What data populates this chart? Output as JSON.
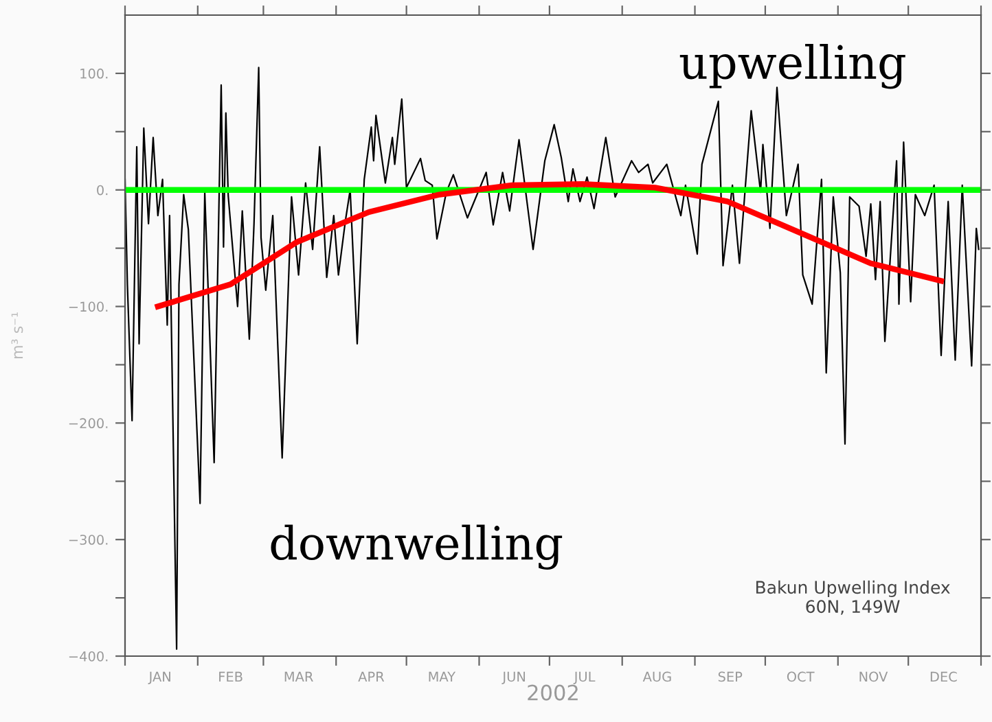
{
  "chart_data": {
    "type": "line",
    "xlabel": "2002",
    "ylabel": "m³ s⁻¹",
    "annotations": [
      "upwelling",
      "downwelling",
      "Bakun Upwelling Index\n60N, 149W"
    ],
    "series": [
      {
        "color": "#000000",
        "x": [
          "2002-01-01",
          "2002-01-02",
          "2002-01-04",
          "2002-01-06",
          "2002-01-07",
          "2002-01-09",
          "2002-01-11",
          "2002-01-13",
          "2002-01-15",
          "2002-01-17",
          "2002-01-19",
          "2002-01-20",
          "2002-01-23",
          "2002-01-24",
          "2002-01-26",
          "2002-01-28",
          "2002-02-02",
          "2002-02-04",
          "2002-02-08",
          "2002-02-11",
          "2002-02-12",
          "2002-02-13",
          "2002-02-14",
          "2002-02-18",
          "2002-02-20",
          "2002-02-23",
          "2002-02-25",
          "2002-02-27",
          "2002-02-28",
          "2002-03-02",
          "2002-03-05",
          "2002-03-09",
          "2002-03-13",
          "2002-03-16",
          "2002-03-19",
          "2002-03-22",
          "2002-03-25",
          "2002-03-28",
          "2002-03-31",
          "2002-04-02",
          "2002-04-05",
          "2002-04-07",
          "2002-04-10",
          "2002-04-13",
          "2002-04-16",
          "2002-04-17",
          "2002-04-18",
          "2002-04-22",
          "2002-04-25",
          "2002-04-26",
          "2002-04-29",
          "2002-05-01",
          "2002-05-07",
          "2002-05-09",
          "2002-05-12",
          "2002-05-14",
          "2002-05-18",
          "2002-05-21",
          "2002-05-27",
          "2002-06-04",
          "2002-06-07",
          "2002-06-11",
          "2002-06-14",
          "2002-06-18",
          "2002-06-24",
          "2002-06-29",
          "2002-07-03",
          "2002-07-06",
          "2002-07-09",
          "2002-07-11",
          "2002-07-14",
          "2002-07-17",
          "2002-07-20",
          "2002-07-25",
          "2002-07-29",
          "2002-08-05",
          "2002-08-08",
          "2002-08-12",
          "2002-08-14",
          "2002-08-20",
          "2002-08-26",
          "2002-08-28",
          "2002-09-02",
          "2002-09-04",
          "2002-09-11",
          "2002-09-13",
          "2002-09-17",
          "2002-09-20",
          "2002-09-25",
          "2002-09-29",
          "2002-09-30",
          "2002-10-03",
          "2002-10-06",
          "2002-10-10",
          "2002-10-15",
          "2002-10-17",
          "2002-10-21",
          "2002-10-25",
          "2002-10-27",
          "2002-10-30",
          "2002-11-02",
          "2002-11-04",
          "2002-11-06",
          "2002-11-10",
          "2002-11-13",
          "2002-11-15",
          "2002-11-17",
          "2002-11-19",
          "2002-11-21",
          "2002-11-26",
          "2002-11-27",
          "2002-11-29",
          "2002-12-02",
          "2002-12-04",
          "2002-12-08",
          "2002-12-12",
          "2002-12-15",
          "2002-12-18",
          "2002-12-21",
          "2002-12-24",
          "2002-12-28",
          "2002-12-30",
          "2002-12-31"
        ],
        "values": [
          9,
          -81,
          -198,
          37,
          -132,
          53,
          -29,
          45,
          -22,
          9,
          -116,
          -22,
          -394,
          -81,
          -4,
          -34,
          -269,
          -2,
          -234,
          90,
          -49,
          66,
          -5,
          -100,
          -18,
          -128,
          -29,
          105,
          -41,
          -86,
          -22,
          -230,
          -6,
          -73,
          6,
          -51,
          37,
          -75,
          -22,
          -73,
          -26,
          0,
          -132,
          9,
          54,
          25,
          64,
          6,
          45,
          22,
          78,
          2,
          27,
          8,
          4,
          -42,
          -2,
          13,
          -24,
          15,
          -30,
          15,
          -18,
          43,
          -51,
          25,
          56,
          28,
          -10,
          18,
          -10,
          11,
          -16,
          45,
          -6,
          25,
          15,
          22,
          6,
          22,
          -22,
          4,
          -55,
          22,
          76,
          -65,
          4,
          -63,
          68,
          -2,
          39,
          -33,
          88,
          -22,
          22,
          -73,
          -98,
          9,
          -157,
          -6,
          -71,
          -218,
          -6,
          -14,
          -57,
          -12,
          -77,
          -10,
          -130,
          25,
          -98,
          41,
          -96,
          -4,
          -22,
          4,
          -142,
          -10,
          -146,
          4,
          -151,
          -33,
          -51
        ]
      },
      {
        "color": "#ff0000",
        "x": [
          "2002-01-15",
          "2002-02-15",
          "2002-03-15",
          "2002-04-15",
          "2002-05-15",
          "2002-06-15",
          "2002-07-15",
          "2002-08-15",
          "2002-09-15",
          "2002-10-15",
          "2002-11-15",
          "2002-12-15"
        ],
        "values": [
          -100,
          -81,
          -45,
          -19,
          -4,
          4,
          5,
          2,
          -10,
          -36,
          -63,
          -78
        ]
      }
    ],
    "ref_lines": [
      {
        "axis": "y",
        "value": 0,
        "color": "#00ff00"
      }
    ],
    "xlim": [
      "2002-01-01",
      "2003-01-01"
    ],
    "xticks": [
      {
        "value": "2002-01-01",
        "label": null
      },
      {
        "value": "2002-01-16",
        "label": "JAN"
      },
      {
        "value": "2002-02-01",
        "label": null
      },
      {
        "value": "2002-02-15",
        "label": "FEB"
      },
      {
        "value": "2002-03-01",
        "label": null
      },
      {
        "value": "2002-03-16",
        "label": "MAR"
      },
      {
        "value": "2002-04-01",
        "label": null
      },
      {
        "value": "2002-04-16",
        "label": "APR"
      },
      {
        "value": "2002-05-01",
        "label": null
      },
      {
        "value": "2002-05-16",
        "label": "MAY"
      },
      {
        "value": "2002-06-01",
        "label": null
      },
      {
        "value": "2002-06-16",
        "label": "JUN"
      },
      {
        "value": "2002-07-01",
        "label": null
      },
      {
        "value": "2002-07-16",
        "label": "JUL"
      },
      {
        "value": "2002-08-01",
        "label": null
      },
      {
        "value": "2002-08-16",
        "label": "AUG"
      },
      {
        "value": "2002-09-01",
        "label": null
      },
      {
        "value": "2002-09-16",
        "label": "SEP"
      },
      {
        "value": "2002-10-01",
        "label": null
      },
      {
        "value": "2002-10-16",
        "label": "OCT"
      },
      {
        "value": "2002-11-01",
        "label": null
      },
      {
        "value": "2002-11-16",
        "label": "NOV"
      },
      {
        "value": "2002-12-01",
        "label": null
      },
      {
        "value": "2002-12-16",
        "label": "DEC"
      },
      {
        "value": "2003-01-01",
        "label": null
      }
    ],
    "ylim": [
      -400,
      150
    ],
    "yticks": [
      {
        "value": -400,
        "label": "−400."
      },
      {
        "value": -350,
        "label": null
      },
      {
        "value": -300,
        "label": "−300."
      },
      {
        "value": -250,
        "label": null
      },
      {
        "value": -200,
        "label": "−200."
      },
      {
        "value": -150,
        "label": null
      },
      {
        "value": -100,
        "label": "−100."
      },
      {
        "value": -50,
        "label": null
      },
      {
        "value": 0,
        "label": "0."
      },
      {
        "value": 50,
        "label": null
      },
      {
        "value": 100,
        "label": "100."
      }
    ],
    "grid": false,
    "legend": false,
    "marker": "none",
    "line_style": "solid"
  }
}
